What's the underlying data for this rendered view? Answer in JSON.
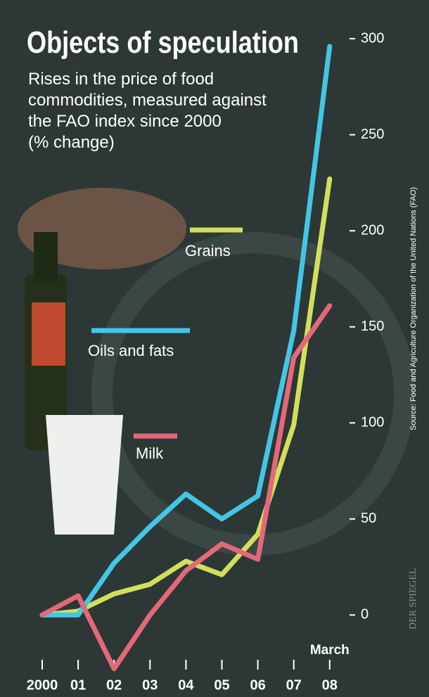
{
  "chart_data": {
    "type": "line",
    "title": "Objects of speculation",
    "subtitle_lines": [
      "Rises in the price of food",
      "commodities, measured against",
      "the FAO index since 2000",
      "(% change)"
    ],
    "annotation": "March",
    "source": "Source: Food and Agriculture Organization of the United Nations (FAO)",
    "credit": "DER SPIEGEL",
    "categories": [
      "2000",
      "01",
      "02",
      "03",
      "04",
      "05",
      "06",
      "07",
      "08"
    ],
    "series": [
      {
        "name": "Grains",
        "color": "#d3df5c",
        "values": [
          0,
          2,
          11,
          16,
          28,
          21,
          42,
          99,
          227
        ]
      },
      {
        "name": "Oils and fats",
        "color": "#43c6e6",
        "values": [
          0,
          0,
          27,
          46,
          63,
          50,
          62,
          148,
          296
        ]
      },
      {
        "name": "Milk",
        "color": "#e5687a",
        "values": [
          0,
          10,
          -28,
          0,
          23,
          37,
          29,
          134,
          161
        ]
      }
    ],
    "ylim": [
      -35,
      300
    ],
    "yticks": [
      0,
      50,
      100,
      150,
      200,
      250,
      300
    ]
  }
}
